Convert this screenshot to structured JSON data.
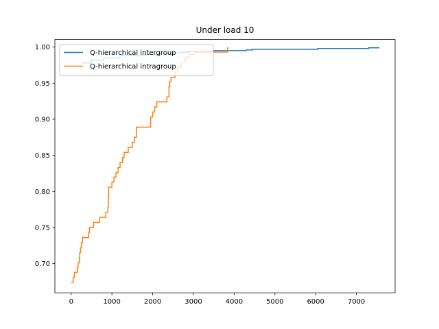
{
  "chart_data": {
    "type": "line",
    "title": "Under load 10",
    "xlabel": "",
    "ylabel": "",
    "xlim": [
      -400,
      7950
    ],
    "ylim": [
      0.6595,
      1.0105
    ],
    "xticks": [
      0,
      1000,
      2000,
      3000,
      4000,
      5000,
      6000,
      7000
    ],
    "yticks": [
      0.7,
      0.75,
      0.8,
      0.85,
      0.9,
      0.95,
      1.0
    ],
    "xtick_labels": [
      "0",
      "1000",
      "2000",
      "3000",
      "4000",
      "5000",
      "6000",
      "7000"
    ],
    "ytick_labels": [
      "0.70",
      "0.75",
      "0.80",
      "0.85",
      "0.90",
      "0.95",
      "1.00"
    ],
    "grid": false,
    "legend_position": "upper-left",
    "series": [
      {
        "name": "Q-hierarchical intergroup",
        "color": "#1f77b4",
        "step": true,
        "x": [
          250,
          500,
          800,
          1200,
          1800,
          2500,
          2700,
          2900,
          3100,
          3500,
          3800,
          4300,
          4450,
          5000,
          5500,
          6000,
          6050,
          6500,
          7000,
          7300,
          7400,
          7550
        ],
        "y": [
          0.978,
          0.982,
          0.985,
          0.988,
          0.99,
          0.992,
          0.993,
          0.994,
          0.994,
          0.995,
          0.995,
          0.996,
          0.997,
          0.997,
          0.997,
          0.997,
          0.998,
          0.998,
          0.998,
          0.999,
          0.999,
          1.0
        ]
      },
      {
        "name": "Q-hierarchical intragroup",
        "color": "#ff7f0e",
        "step": true,
        "x": [
          0,
          50,
          80,
          150,
          170,
          200,
          210,
          230,
          250,
          280,
          300,
          430,
          450,
          550,
          700,
          850,
          900,
          910,
          920,
          940,
          1000,
          1050,
          1100,
          1150,
          1200,
          1260,
          1300,
          1400,
          1500,
          1550,
          1600,
          1900,
          1950,
          2000,
          2050,
          2100,
          2350,
          2400,
          2420,
          2450,
          2550,
          2600,
          2700,
          2750,
          2800,
          2900,
          3000,
          3200,
          3800,
          3840
        ],
        "y": [
          0.674,
          0.681,
          0.688,
          0.694,
          0.701,
          0.708,
          0.715,
          0.722,
          0.729,
          0.736,
          0.736,
          0.743,
          0.75,
          0.757,
          0.764,
          0.771,
          0.778,
          0.792,
          0.806,
          0.806,
          0.813,
          0.82,
          0.826,
          0.833,
          0.84,
          0.847,
          0.854,
          0.861,
          0.868,
          0.875,
          0.889,
          0.889,
          0.903,
          0.91,
          0.917,
          0.924,
          0.931,
          0.945,
          0.952,
          0.958,
          0.965,
          0.972,
          0.979,
          0.979,
          0.986,
          0.99,
          0.993,
          0.993,
          0.993,
          1.0
        ]
      }
    ]
  }
}
